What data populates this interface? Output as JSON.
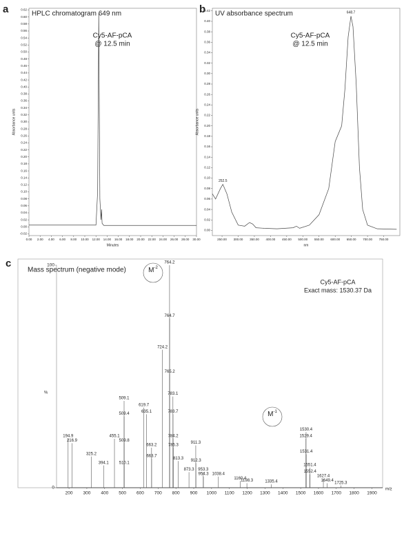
{
  "chart_data": [
    {
      "type": "line",
      "panel": "a",
      "title": "HPLC chromatogram 649 nm",
      "x_label": "Minutes",
      "y_label": "Absorbance units",
      "annotations": [
        "Cy5-AF-pCA",
        "@ 12.5 min"
      ],
      "color": "#444444",
      "x": [
        0,
        12.0,
        12.3,
        12.5,
        12.7,
        12.9,
        13.0,
        13.1,
        13.4,
        30
      ],
      "values": [
        0.005,
        0.005,
        0.1,
        0.61,
        0.08,
        0.02,
        0.05,
        0.01,
        0.004,
        0.004
      ],
      "xlim": [
        0,
        30
      ],
      "ylim": [
        -0.025,
        0.625
      ],
      "xticks": [
        {
          "value": 0,
          "label": "0.00"
        },
        {
          "value": 2,
          "label": "2.00"
        },
        {
          "value": 4,
          "label": "4.00"
        },
        {
          "value": 6,
          "label": "6.00"
        },
        {
          "value": 8,
          "label": "8.00"
        },
        {
          "value": 10,
          "label": "10.00"
        },
        {
          "value": 12,
          "label": "12.00"
        },
        {
          "value": 14,
          "label": "14.00"
        },
        {
          "value": 16,
          "label": "16.00"
        },
        {
          "value": 18,
          "label": "18.00"
        },
        {
          "value": 20,
          "label": "20.00"
        },
        {
          "value": 22,
          "label": "22.00"
        },
        {
          "value": 24,
          "label": "24.00"
        },
        {
          "value": 26,
          "label": "26.00"
        },
        {
          "value": 28,
          "label": "28.00"
        },
        {
          "value": 30,
          "label": "30.00"
        }
      ],
      "yticks": [
        -0.02,
        {
          "value": 0,
          "label": "0.00"
        },
        0.02,
        0.04,
        0.06,
        0.08,
        {
          "value": 0.1,
          "label": "0.10"
        },
        0.12,
        0.14,
        0.16,
        0.18,
        {
          "value": 0.2,
          "label": "0.20"
        },
        0.22,
        0.24,
        0.26,
        0.28,
        {
          "value": 0.3,
          "label": "0.30"
        },
        0.32,
        0.34,
        0.36,
        0.38,
        {
          "value": 0.4,
          "label": "0.40"
        },
        0.42,
        0.44,
        0.46,
        0.48,
        {
          "value": 0.5,
          "label": "0.50"
        },
        0.52,
        0.54,
        0.56,
        0.58,
        {
          "value": 0.6,
          "label": "0.60"
        },
        0.62
      ]
    },
    {
      "type": "line",
      "panel": "b",
      "title": "UV absorbance spectrum",
      "x_label": "nm",
      "y_label": "Absorbance units",
      "annotations": [
        "Cy5-AF-pCA",
        "@ 12.5 min"
      ],
      "color": "#444444",
      "peaks": [
        252.5,
        648.7
      ],
      "x": [
        220,
        230,
        245,
        252.5,
        265,
        280,
        300,
        320,
        335,
        345,
        355,
        380,
        420,
        470,
        480,
        490,
        520,
        550,
        580,
        600,
        610,
        620,
        630,
        640,
        648.7,
        655,
        665,
        675,
        685,
        700,
        730,
        790
      ],
      "values": [
        0.07,
        0.06,
        0.08,
        0.088,
        0.07,
        0.035,
        0.01,
        0.008,
        0.015,
        0.012,
        0.005,
        0.004,
        0.003,
        0.005,
        0.008,
        0.004,
        0.01,
        0.03,
        0.08,
        0.17,
        0.185,
        0.2,
        0.27,
        0.37,
        0.41,
        0.39,
        0.28,
        0.12,
        0.04,
        0.01,
        0.003,
        0.002
      ],
      "xlim": [
        220,
        800
      ],
      "ylim": [
        -0.01,
        0.425
      ],
      "xticks": [
        {
          "value": 250,
          "label": "250.00"
        },
        {
          "value": 300,
          "label": "300.00"
        },
        {
          "value": 350,
          "label": "350.00"
        },
        {
          "value": 400,
          "label": "400.00"
        },
        {
          "value": 450,
          "label": "450.00"
        },
        {
          "value": 500,
          "label": "500.00"
        },
        {
          "value": 550,
          "label": "550.00"
        },
        {
          "value": 600,
          "label": "600.00"
        },
        {
          "value": 650,
          "label": "650.00"
        },
        {
          "value": 700,
          "label": "700.00"
        },
        {
          "value": 750,
          "label": "750.00"
        }
      ],
      "yticks": [
        {
          "value": 0,
          "label": "0.00"
        },
        0.02,
        0.04,
        0.06,
        0.08,
        {
          "value": 0.1,
          "label": "0.10"
        },
        0.12,
        0.14,
        0.16,
        0.18,
        {
          "value": 0.2,
          "label": "0.20"
        },
        0.22,
        0.24,
        0.26,
        0.28,
        {
          "value": 0.3,
          "label": "0.30"
        },
        0.32,
        0.34,
        0.36,
        0.38,
        {
          "value": 0.4,
          "label": "0.40"
        },
        0.42
      ]
    },
    {
      "type": "stem",
      "panel": "c",
      "title": "Mass spectrum (negative mode)",
      "x_label": "m/z",
      "y_label": "%",
      "annotations": [
        "Cy5-AF-pCA",
        "Exact mass: 1530.37 Da"
      ],
      "ion_labels": [
        {
          "text": "M",
          "sup": "-2"
        },
        {
          "text": "M",
          "sup": "-1"
        }
      ],
      "color": "#555555",
      "x": [
        194.9,
        216.9,
        325.2,
        394.1,
        455.1,
        509.1,
        509.4,
        509.8,
        510.1,
        619.7,
        635.1,
        663.2,
        663.7,
        724.2,
        764.2,
        764.7,
        765.2,
        783.1,
        783.7,
        784.2,
        785.3,
        813.3,
        873.3,
        911.3,
        912.3,
        953.3,
        954.3,
        1038.4,
        1160.4,
        1198.3,
        1335.4,
        1529.4,
        1530.4,
        1531.4,
        1551.4,
        1552.4,
        1627.4,
        1649.4,
        1725.3
      ],
      "values": [
        22,
        20,
        14,
        10,
        22,
        39,
        32,
        20,
        10,
        36,
        33,
        18,
        13,
        62,
        100,
        76,
        51,
        41,
        33,
        22,
        18,
        12,
        7,
        19,
        11,
        7,
        5,
        5,
        3,
        2,
        1.5,
        22,
        25,
        15,
        9,
        6,
        4,
        2,
        1
      ],
      "xlim": [
        130,
        1960
      ],
      "ylim": [
        0,
        100
      ],
      "xticks": [
        200,
        300,
        400,
        500,
        600,
        700,
        800,
        900,
        1000,
        1100,
        1200,
        1300,
        1400,
        1500,
        1600,
        1700,
        1800,
        1900
      ],
      "yticks": [
        0,
        100
      ]
    }
  ]
}
